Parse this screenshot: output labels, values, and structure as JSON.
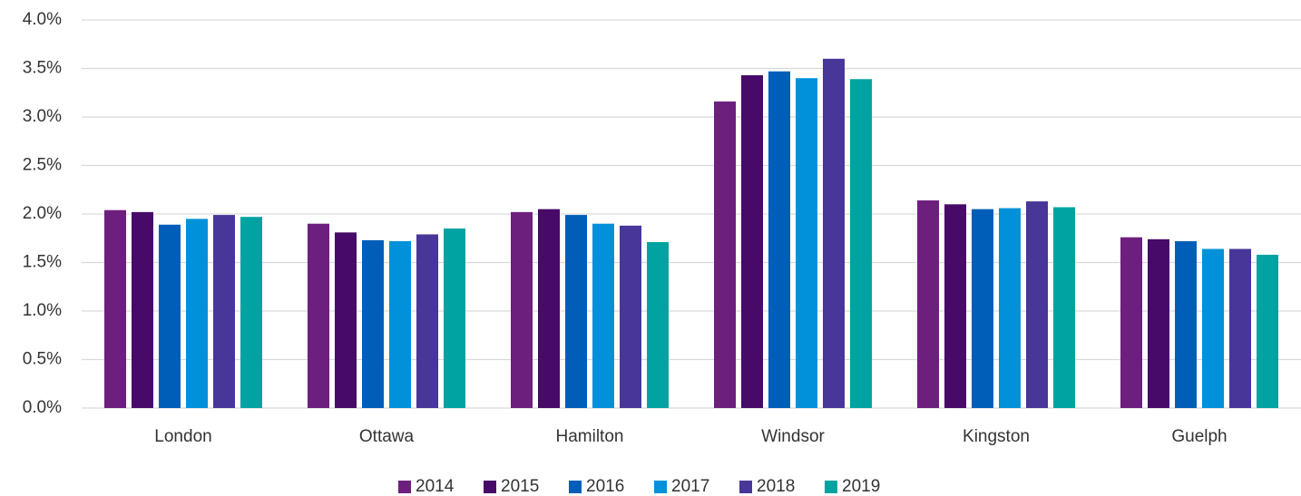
{
  "chart_data": {
    "type": "bar",
    "categories": [
      "London",
      "Ottawa",
      "Hamilton",
      "Windsor",
      "Kingston",
      "Guelph"
    ],
    "series": [
      {
        "name": "2014",
        "color": "#6d1f7e",
        "values": [
          2.04,
          1.9,
          2.02,
          3.16,
          2.14,
          1.76
        ]
      },
      {
        "name": "2015",
        "color": "#470a68",
        "values": [
          2.02,
          1.81,
          2.05,
          3.43,
          2.1,
          1.74
        ]
      },
      {
        "name": "2016",
        "color": "#005eb8",
        "values": [
          1.89,
          1.73,
          1.99,
          3.47,
          2.05,
          1.72
        ]
      },
      {
        "name": "2017",
        "color": "#0091da",
        "values": [
          1.95,
          1.72,
          1.9,
          3.4,
          2.06,
          1.64
        ]
      },
      {
        "name": "2018",
        "color": "#483698",
        "values": [
          1.99,
          1.79,
          1.88,
          3.6,
          2.13,
          1.64
        ]
      },
      {
        "name": "2019",
        "color": "#00a3a1",
        "values": [
          1.97,
          1.85,
          1.71,
          3.39,
          2.07,
          1.58
        ]
      }
    ],
    "ylim": [
      0,
      4
    ],
    "yticks": [
      {
        "value": 0,
        "label": "0.0%"
      },
      {
        "value": 0.5,
        "label": "0.5%"
      },
      {
        "value": 1,
        "label": "1.0%"
      },
      {
        "value": 1.5,
        "label": "1.5%"
      },
      {
        "value": 2,
        "label": "2.0%"
      },
      {
        "value": 2.5,
        "label": "2.5%"
      },
      {
        "value": 3,
        "label": "3.0%"
      },
      {
        "value": 3.5,
        "label": "3.5%"
      },
      {
        "value": 4,
        "label": "4.0%"
      }
    ],
    "grid": true,
    "legend": "bottom"
  }
}
